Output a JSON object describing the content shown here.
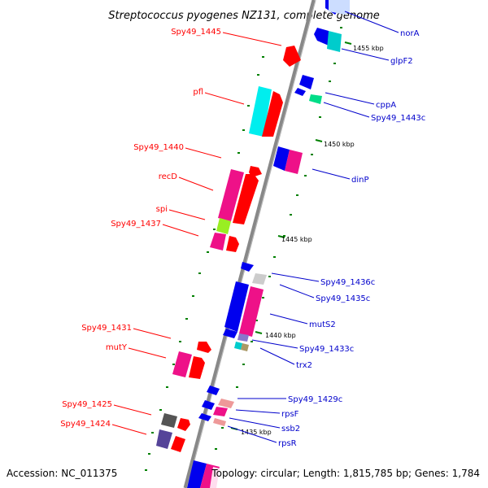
{
  "title": "Streptococcus pyogenes NZ131, complete genome",
  "footer": {
    "accession": "Accession: NC_011375",
    "summary": "Topology: circular; Length: 1,815,785 bp; Genes: 1,784"
  },
  "colors": {
    "backbone": "#888888",
    "left_label": "#ff0000",
    "right_label": "#0000cc",
    "tick_green": "#008000"
  },
  "ticks": [
    {
      "label": "1455 kbp",
      "position_kbp": 1455
    },
    {
      "label": "1450 kbp",
      "position_kbp": 1450
    },
    {
      "label": "1445 kbp",
      "position_kbp": 1445
    },
    {
      "label": "1440 kbp",
      "position_kbp": 1440
    },
    {
      "label": "1435 kbp",
      "position_kbp": 1435
    }
  ],
  "labels_left": [
    {
      "name": "Spy49_1445"
    },
    {
      "name": "pfl"
    },
    {
      "name": "Spy49_1440"
    },
    {
      "name": "recD"
    },
    {
      "name": "spi"
    },
    {
      "name": "Spy49_1437"
    },
    {
      "name": "Spy49_1431"
    },
    {
      "name": "mutY"
    },
    {
      "name": "Spy49_1425"
    },
    {
      "name": "Spy49_1424"
    }
  ],
  "labels_right": [
    {
      "name": "norA"
    },
    {
      "name": "glpF2"
    },
    {
      "name": "cppA"
    },
    {
      "name": "Spy49_1443c"
    },
    {
      "name": "dinP"
    },
    {
      "name": "Spy49_1436c"
    },
    {
      "name": "Spy49_1435c"
    },
    {
      "name": "mutS2"
    },
    {
      "name": "Spy49_1433c"
    },
    {
      "name": "trx2"
    },
    {
      "name": "Spy49_1429c"
    },
    {
      "name": "rpsF"
    },
    {
      "name": "ssb2"
    },
    {
      "name": "rpsR"
    }
  ]
}
